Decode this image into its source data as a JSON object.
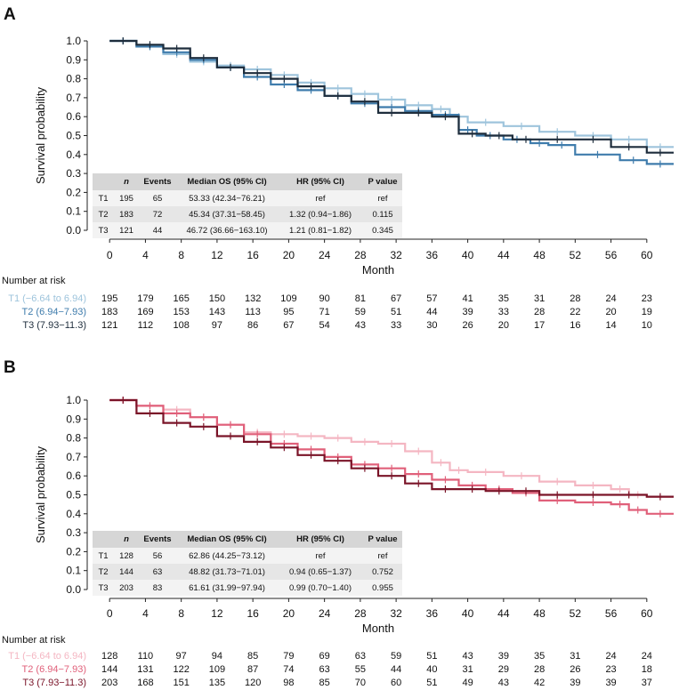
{
  "chart_data": [
    {
      "panel_label": "A",
      "type": "line",
      "ylabel": "Survival probability",
      "xlabel": "Month",
      "xlim": [
        -3,
        63
      ],
      "ylim": [
        0,
        1.0
      ],
      "yticks": [
        0.0,
        0.1,
        0.2,
        0.3,
        0.4,
        0.5,
        0.6,
        0.7,
        0.8,
        0.9,
        1.0
      ],
      "xticks": [
        0,
        4,
        8,
        12,
        16,
        20,
        24,
        28,
        32,
        36,
        40,
        44,
        48,
        52,
        56,
        60
      ],
      "series": [
        {
          "name": "T1 (−6.64 to 6.94)",
          "color": "#9ec4dc",
          "x": [
            0,
            3,
            6,
            9,
            12,
            15,
            18,
            21,
            24,
            27,
            30,
            33,
            36,
            38,
            40,
            44,
            48,
            52,
            56,
            60,
            63
          ],
          "y": [
            1.0,
            0.97,
            0.93,
            0.89,
            0.87,
            0.85,
            0.82,
            0.78,
            0.75,
            0.72,
            0.69,
            0.66,
            0.64,
            0.6,
            0.57,
            0.55,
            0.52,
            0.5,
            0.48,
            0.44,
            0.44
          ]
        },
        {
          "name": "T2 (6.94−7.93)",
          "color": "#3f7cac",
          "x": [
            0,
            3,
            6,
            9,
            12,
            15,
            18,
            21,
            24,
            27,
            30,
            33,
            36,
            39,
            41,
            44,
            47,
            49,
            52,
            57,
            60,
            63
          ],
          "y": [
            1.0,
            0.97,
            0.94,
            0.9,
            0.86,
            0.81,
            0.77,
            0.74,
            0.71,
            0.67,
            0.65,
            0.63,
            0.61,
            0.53,
            0.5,
            0.48,
            0.46,
            0.45,
            0.4,
            0.37,
            0.35,
            0.35
          ]
        },
        {
          "name": "T3 (7.93−11.3)",
          "color": "#1e2d3c",
          "x": [
            0,
            3,
            6,
            9,
            12,
            15,
            18,
            21,
            24,
            27,
            30,
            33,
            36,
            39,
            42,
            45,
            48,
            52,
            56,
            60,
            63
          ],
          "y": [
            1.0,
            0.98,
            0.96,
            0.91,
            0.86,
            0.83,
            0.8,
            0.76,
            0.71,
            0.68,
            0.62,
            0.62,
            0.6,
            0.51,
            0.5,
            0.48,
            0.48,
            0.48,
            0.44,
            0.41,
            0.41
          ]
        }
      ],
      "summary_table": {
        "headers": [
          "",
          "n",
          "Events",
          "Median OS (95% CI)",
          "HR (95% CI)",
          "P value"
        ],
        "rows": [
          [
            "T1",
            "195",
            "65",
            "53.33 (42.34−76.21)",
            "ref",
            "ref"
          ],
          [
            "T2",
            "183",
            "72",
            "45.34 (37.31−58.45)",
            "1.32 (0.94−1.86)",
            "0.115"
          ],
          [
            "T3",
            "121",
            "44",
            "46.72 (36.66−163.10)",
            "1.21 (0.81−1.82)",
            "0.345"
          ]
        ]
      },
      "risk_table": {
        "title": "Number at risk",
        "rows": [
          {
            "label": "T1 (−6.64 to 6.94)",
            "color": "#9ec4dc",
            "values": [
              "195",
              "179",
              "165",
              "150",
              "132",
              "109",
              "90",
              "81",
              "67",
              "57",
              "41",
              "35",
              "31",
              "28",
              "24",
              "23"
            ]
          },
          {
            "label": "T2 (6.94−7.93)",
            "color": "#3f7cac",
            "values": [
              "183",
              "169",
              "153",
              "143",
              "113",
              "95",
              "71",
              "59",
              "51",
              "44",
              "39",
              "33",
              "28",
              "22",
              "20",
              "19"
            ]
          },
          {
            "label": "T3 (7.93−11.3)",
            "color": "#1e2d3c",
            "values": [
              "121",
              "112",
              "108",
              "97",
              "86",
              "67",
              "54",
              "43",
              "33",
              "30",
              "26",
              "20",
              "17",
              "16",
              "14",
              "10"
            ]
          }
        ]
      }
    },
    {
      "panel_label": "B",
      "type": "line",
      "ylabel": "Survival probability",
      "xlabel": "Month",
      "xlim": [
        -3,
        63
      ],
      "ylim": [
        0,
        1.0
      ],
      "yticks": [
        0.0,
        0.1,
        0.2,
        0.3,
        0.4,
        0.5,
        0.6,
        0.7,
        0.8,
        0.9,
        1.0
      ],
      "xticks": [
        0,
        4,
        8,
        12,
        16,
        20,
        24,
        28,
        32,
        36,
        40,
        44,
        48,
        52,
        56,
        60
      ],
      "series": [
        {
          "name": "T1 (−6.64 to 6.94)",
          "color": "#f4b6c2",
          "x": [
            0,
            3,
            6,
            9,
            12,
            15,
            18,
            21,
            24,
            27,
            30,
            33,
            36,
            38,
            40,
            44,
            48,
            52,
            56,
            58,
            60,
            63
          ],
          "y": [
            1.0,
            0.97,
            0.95,
            0.91,
            0.87,
            0.83,
            0.82,
            0.81,
            0.8,
            0.78,
            0.77,
            0.73,
            0.67,
            0.63,
            0.62,
            0.6,
            0.57,
            0.55,
            0.53,
            0.5,
            0.49,
            0.49
          ]
        },
        {
          "name": "T2 (6.94−7.93)",
          "color": "#e0607a",
          "x": [
            0,
            3,
            6,
            9,
            12,
            15,
            18,
            21,
            24,
            27,
            30,
            33,
            36,
            39,
            42,
            45,
            48,
            52,
            56,
            58,
            60,
            63
          ],
          "y": [
            1.0,
            0.97,
            0.93,
            0.91,
            0.87,
            0.82,
            0.77,
            0.74,
            0.7,
            0.66,
            0.64,
            0.61,
            0.58,
            0.55,
            0.53,
            0.51,
            0.47,
            0.46,
            0.45,
            0.42,
            0.4,
            0.4
          ]
        },
        {
          "name": "T3 (7.93−11.3)",
          "color": "#7a1428",
          "x": [
            0,
            3,
            6,
            9,
            12,
            15,
            18,
            21,
            24,
            27,
            30,
            33,
            36,
            39,
            42,
            45,
            48,
            52,
            56,
            60,
            63
          ],
          "y": [
            1.0,
            0.93,
            0.88,
            0.86,
            0.81,
            0.78,
            0.75,
            0.71,
            0.68,
            0.64,
            0.6,
            0.56,
            0.53,
            0.53,
            0.52,
            0.52,
            0.5,
            0.5,
            0.5,
            0.49,
            0.49
          ]
        }
      ],
      "summary_table": {
        "headers": [
          "",
          "n",
          "Events",
          "Median OS (95% CI)",
          "HR (95% CI)",
          "P value"
        ],
        "rows": [
          [
            "T1",
            "128",
            "56",
            "62.86 (44.25−73.12)",
            "ref",
            "ref"
          ],
          [
            "T2",
            "144",
            "63",
            "48.82 (31.73−71.01)",
            "0.94 (0.65−1.37)",
            "0.752"
          ],
          [
            "T3",
            "203",
            "83",
            "61.61 (31.99−97.94)",
            "0.99 (0.70−1.40)",
            "0.955"
          ]
        ]
      },
      "risk_table": {
        "title": "Number at risk",
        "rows": [
          {
            "label": "T1 (−6.64 to 6.94)",
            "color": "#f4b6c2",
            "values": [
              "128",
              "110",
              "97",
              "94",
              "85",
              "79",
              "69",
              "63",
              "59",
              "51",
              "43",
              "39",
              "35",
              "31",
              "24",
              "24"
            ]
          },
          {
            "label": "T2 (6.94−7.93)",
            "color": "#e0607a",
            "values": [
              "144",
              "131",
              "122",
              "109",
              "87",
              "74",
              "63",
              "55",
              "44",
              "40",
              "31",
              "29",
              "28",
              "26",
              "23",
              "18"
            ]
          },
          {
            "label": "T3 (7.93−11.3)",
            "color": "#7a1428",
            "values": [
              "203",
              "168",
              "151",
              "135",
              "120",
              "98",
              "85",
              "70",
              "60",
              "51",
              "49",
              "43",
              "42",
              "39",
              "39",
              "37"
            ]
          }
        ]
      }
    }
  ]
}
